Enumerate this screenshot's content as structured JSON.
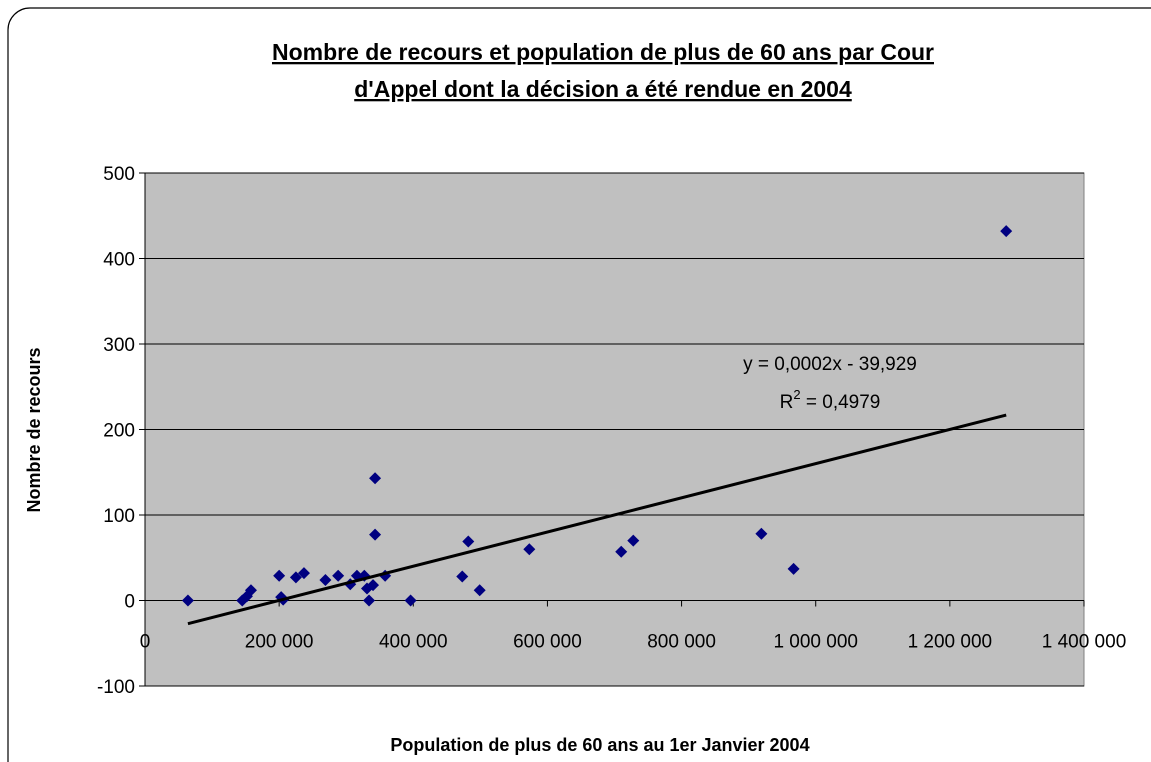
{
  "chart_data": {
    "type": "scatter",
    "title": [
      "Nombre de recours et population de plus de 60 ans par Cour",
      "d'Appel dont la décision a été rendue en 2004"
    ],
    "xlabel": "Population de plus de 60 ans au 1er Janvier 2004",
    "ylabel": "Nombre de recours",
    "xlim": [
      0,
      1400000
    ],
    "ylim": [
      -100,
      500
    ],
    "xticks": [
      0,
      {
        "value": 200000,
        "label": "200 000"
      },
      {
        "value": 400000,
        "label": "400 000"
      },
      {
        "value": 600000,
        "label": "600 000"
      },
      {
        "value": 800000,
        "label": "800 000"
      },
      {
        "value": 1000000,
        "label": "1 000 000"
      },
      {
        "value": 1200000,
        "label": "1 200 000"
      },
      {
        "value": 1400000,
        "label": "1 400 000"
      }
    ],
    "yticks": [
      -100,
      0,
      100,
      200,
      300,
      400,
      500
    ],
    "grid": true,
    "color": "#000080",
    "x": [
      64000,
      145000,
      152000,
      158000,
      200000,
      203000,
      206000,
      225000,
      237000,
      269000,
      288000,
      306000,
      316000,
      327000,
      331000,
      334000,
      340000,
      343000,
      343000,
      358000,
      396000,
      473000,
      482000,
      499000,
      573000,
      710000,
      728000,
      919000,
      967000,
      1284000
    ],
    "values": [
      0,
      0,
      5,
      12,
      29,
      4,
      1,
      27,
      32,
      24,
      29,
      19,
      29,
      29,
      14,
      0,
      18,
      143,
      77,
      29,
      0,
      28,
      69,
      12,
      60,
      57,
      70,
      78,
      37,
      432
    ],
    "trendline": {
      "slope": 0.0002,
      "intercept": -39.929,
      "color": "#000000",
      "equation": "y = 0,0002x - 39,929",
      "r_squared": {
        "symbol": "R",
        "exponent": "2",
        "text": " = 0,4979"
      }
    }
  }
}
